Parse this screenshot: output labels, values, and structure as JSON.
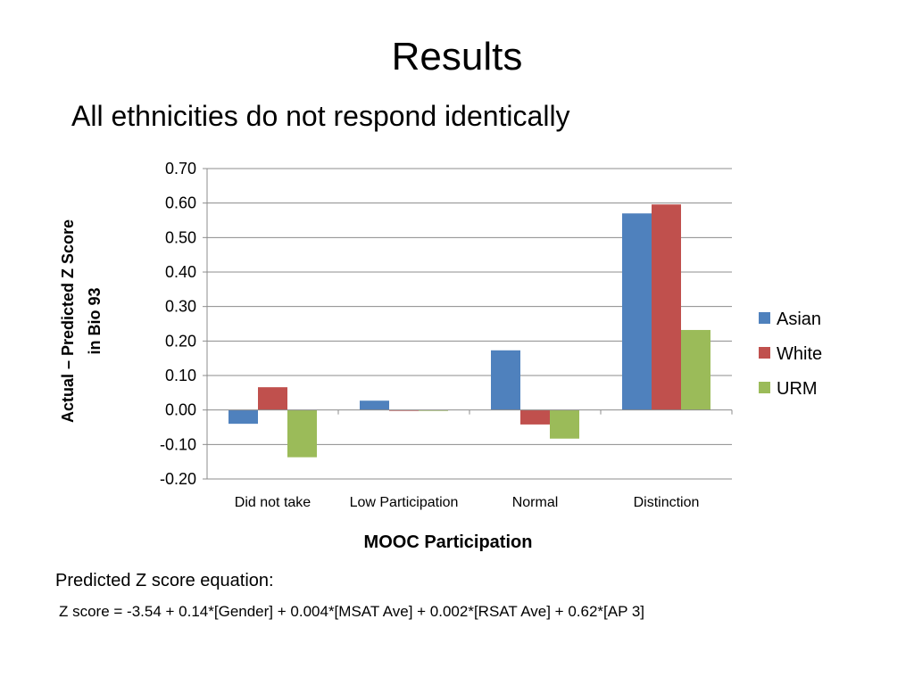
{
  "slide": {
    "title": "Results",
    "subtitle": "All ethnicities do not respond identically"
  },
  "chart_data": {
    "type": "bar",
    "categories": [
      "Did not take",
      "Low Participation",
      "Normal",
      "Distinction"
    ],
    "series": [
      {
        "name": "Asian",
        "color": "#4f81bd",
        "values": [
          -0.04,
          0.027,
          0.173,
          0.57
        ]
      },
      {
        "name": "White",
        "color": "#c0504d",
        "values": [
          0.066,
          0.0,
          -0.042,
          0.596
        ]
      },
      {
        "name": "URM",
        "color": "#9bbb59",
        "values": [
          -0.137,
          0.0,
          -0.083,
          0.232
        ]
      }
    ],
    "ylim": [
      -0.2,
      0.7
    ],
    "yticks": [
      "-0.20",
      "-0.10",
      "0.00",
      "0.10",
      "0.20",
      "0.30",
      "0.40",
      "0.50",
      "0.60",
      "0.70"
    ],
    "ylabel_line1": "Actual – Predicted Z Score",
    "ylabel_line2": "in Bio 93",
    "xlabel": "MOOC Participation",
    "grid": true,
    "legend": "right"
  },
  "equation": {
    "label": "Predicted Z score equation:",
    "text": "Z score =  -3.54 + 0.14*[Gender] + 0.004*[MSAT Ave] + 0.002*[RSAT Ave] + 0.62*[AP 3]"
  }
}
